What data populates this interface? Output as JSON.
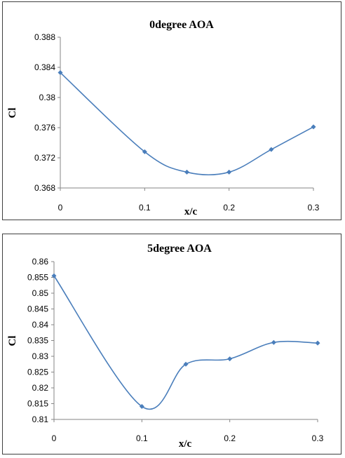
{
  "chart_data": [
    {
      "type": "line",
      "title": "0degree AOA",
      "xlabel": "x/c",
      "ylabel": "Cl",
      "x": [
        0,
        0.1,
        0.15,
        0.2,
        0.25,
        0.3
      ],
      "series": [
        {
          "values": [
            0.3833,
            0.3728,
            0.3701,
            0.3701,
            0.3731,
            0.3761
          ]
        }
      ],
      "xlim": [
        0,
        0.3
      ],
      "ylim": [
        0.368,
        0.388
      ],
      "xticks": [
        "0",
        "0.1",
        "0.2",
        "0.3"
      ],
      "xtick_values": [
        0,
        0.1,
        0.2,
        0.3
      ],
      "yticks": [
        "0.368",
        "0.372",
        "0.376",
        "0.38",
        "0.384",
        "0.388"
      ],
      "ytick_values": [
        0.368,
        0.372,
        0.376,
        0.38,
        0.384,
        0.388
      ],
      "grid": false,
      "line_style": "smooth",
      "marker": "diamond",
      "color": "#4a7ebb"
    },
    {
      "type": "line",
      "title": "5degree AOA",
      "xlabel": "x/c",
      "ylabel": "Cl",
      "x": [
        0,
        0.1,
        0.15,
        0.2,
        0.25,
        0.3
      ],
      "series": [
        {
          "values": [
            0.8555,
            0.8141,
            0.8275,
            0.8292,
            0.8344,
            0.8342
          ]
        }
      ],
      "xlim": [
        0,
        0.3
      ],
      "ylim": [
        0.81,
        0.86
      ],
      "xticks": [
        "0",
        "0.1",
        "0.2",
        "0.3"
      ],
      "xtick_values": [
        0,
        0.1,
        0.2,
        0.3
      ],
      "yticks": [
        "0.81",
        "0.815",
        "0.82",
        "0.825",
        "0.83",
        "0.835",
        "0.84",
        "0.845",
        "0.85",
        "0.855",
        "0.86"
      ],
      "ytick_values": [
        0.81,
        0.815,
        0.82,
        0.825,
        0.83,
        0.835,
        0.84,
        0.845,
        0.85,
        0.855,
        0.86
      ],
      "grid": false,
      "line_style": "smooth",
      "marker": "diamond",
      "color": "#4a7ebb"
    }
  ]
}
